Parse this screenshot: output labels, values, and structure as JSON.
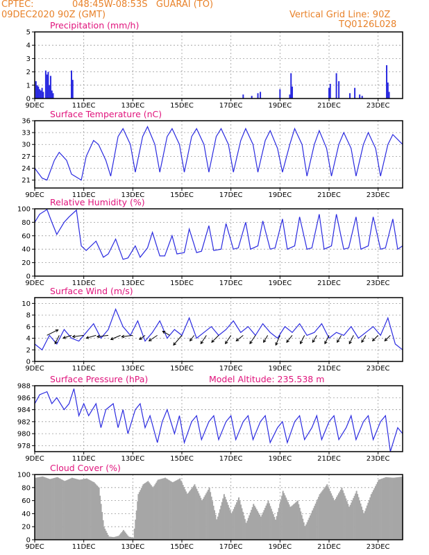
{
  "header": {
    "org": "CPTEC:",
    "location": "048:45W-08:53S   GUARAI (TO)",
    "run": "09DEC2020 90Z (GMT)",
    "grid_line": "Vertical Grid Line: 90Z",
    "code": "TQ0126L028"
  },
  "colors": {
    "header": "#e8822a",
    "title": "#e0147c",
    "line": "#2a2ae0",
    "cloud": "#a6a6a6",
    "wind": "#000000"
  },
  "x_tick_labels": [
    "9DEC",
    "11DEC",
    "13DEC",
    "15DEC",
    "17DEC",
    "19DEC",
    "21DEC",
    "23DEC"
  ],
  "x_tick_days": [
    0,
    2,
    4,
    6,
    8,
    10,
    12,
    14
  ],
  "x_range_days": [
    0,
    15
  ],
  "chart_data": [
    {
      "type": "bar",
      "title": "Precipitation (mm/h)",
      "ylim": [
        0,
        5
      ],
      "yticks": [
        0,
        1,
        2,
        3,
        4,
        5
      ],
      "grid": true,
      "x": [
        0.05,
        0.1,
        0.15,
        0.2,
        0.25,
        0.3,
        0.35,
        0.45,
        0.5,
        0.55,
        0.6,
        0.65,
        0.7,
        0.75,
        1.5,
        1.55,
        8.5,
        8.85,
        9.1,
        9.2,
        10.0,
        10.4,
        10.45,
        10.5,
        12.0,
        12.05,
        12.3,
        12.4,
        12.85,
        13.05,
        13.25,
        13.35,
        14.35,
        14.4,
        14.45
      ],
      "values": [
        1.3,
        1.0,
        0.9,
        0.7,
        0.6,
        0.8,
        0.5,
        2.1,
        1.8,
        2.0,
        1.0,
        1.7,
        0.6,
        0.4,
        2.1,
        1.4,
        0.3,
        0.2,
        0.4,
        0.5,
        0.7,
        0.3,
        1.9,
        0.9,
        0.8,
        1.1,
        1.9,
        1.3,
        0.4,
        0.8,
        0.3,
        0.2,
        2.5,
        1.2,
        0.5
      ]
    },
    {
      "type": "line",
      "title": "Surface Temperature (nC)",
      "ylim": [
        19,
        36
      ],
      "yticks": [
        21,
        24,
        27,
        30,
        33,
        36
      ],
      "grid": true,
      "series": [
        {
          "x": [
            0,
            0.3,
            0.5,
            0.8,
            1.0,
            1.3,
            1.5,
            1.9,
            2.1,
            2.4,
            2.6,
            2.9,
            3.1,
            3.4,
            3.6,
            3.9,
            4.1,
            4.4,
            4.6,
            4.9,
            5.1,
            5.4,
            5.6,
            5.9,
            6.1,
            6.4,
            6.6,
            6.9,
            7.1,
            7.4,
            7.6,
            7.9,
            8.1,
            8.4,
            8.6,
            8.9,
            9.1,
            9.4,
            9.6,
            9.9,
            10.1,
            10.4,
            10.6,
            10.9,
            11.1,
            11.4,
            11.6,
            11.9,
            12.1,
            12.4,
            12.6,
            12.9,
            13.1,
            13.4,
            13.6,
            13.9,
            14.1,
            14.4,
            14.6,
            15.0
          ],
          "values": [
            24,
            21.5,
            21,
            26,
            28,
            26,
            22.5,
            21,
            27,
            31,
            30,
            26,
            22,
            32,
            34,
            30,
            23,
            32,
            34.5,
            30,
            23,
            32,
            34,
            30,
            23,
            32,
            34,
            30,
            23,
            32,
            34,
            30,
            23,
            31,
            34,
            30,
            23,
            31,
            33.5,
            29,
            23,
            30,
            34,
            30,
            22,
            30,
            33.5,
            29,
            22,
            30,
            33,
            29,
            22,
            30,
            33,
            29,
            22,
            30,
            32.5,
            30
          ]
        }
      ]
    },
    {
      "type": "line",
      "title": "Relative Humidity (%)",
      "ylim": [
        0,
        100
      ],
      "yticks": [
        0,
        20,
        40,
        60,
        80,
        100
      ],
      "grid": true,
      "series": [
        {
          "x": [
            0,
            0.2,
            0.5,
            0.7,
            0.9,
            1.2,
            1.4,
            1.7,
            1.9,
            2.1,
            2.5,
            2.8,
            3.0,
            3.3,
            3.6,
            3.8,
            4.1,
            4.3,
            4.6,
            4.8,
            5.1,
            5.3,
            5.6,
            5.8,
            6.1,
            6.3,
            6.6,
            6.8,
            7.1,
            7.3,
            7.6,
            7.8,
            8.1,
            8.3,
            8.6,
            8.8,
            9.1,
            9.3,
            9.6,
            9.8,
            10.1,
            10.3,
            10.6,
            10.8,
            11.1,
            11.3,
            11.6,
            11.8,
            12.1,
            12.3,
            12.6,
            12.8,
            13.1,
            13.3,
            13.6,
            13.8,
            14.1,
            14.3,
            14.6,
            14.8,
            15.0
          ],
          "values": [
            80,
            92,
            99,
            80,
            62,
            80,
            88,
            98,
            45,
            38,
            52,
            28,
            33,
            55,
            25,
            27,
            45,
            28,
            42,
            65,
            30,
            30,
            60,
            33,
            35,
            70,
            35,
            37,
            75,
            38,
            40,
            78,
            40,
            42,
            80,
            40,
            45,
            82,
            40,
            42,
            85,
            40,
            45,
            88,
            40,
            42,
            92,
            40,
            45,
            92,
            40,
            42,
            88,
            40,
            45,
            88,
            40,
            42,
            85,
            40,
            45
          ]
        }
      ]
    },
    {
      "type": "line",
      "title": "Surface Wind (m/s)",
      "ylim": [
        0,
        11
      ],
      "yticks": [
        0,
        2,
        4,
        6,
        8,
        10
      ],
      "grid": true,
      "series": [
        {
          "x": [
            0,
            0.3,
            0.6,
            0.9,
            1.2,
            1.5,
            1.8,
            2.1,
            2.4,
            2.7,
            3.0,
            3.3,
            3.6,
            3.9,
            4.2,
            4.5,
            4.8,
            5.1,
            5.4,
            5.7,
            6.0,
            6.3,
            6.6,
            6.9,
            7.2,
            7.5,
            7.8,
            8.1,
            8.4,
            8.7,
            9.0,
            9.3,
            9.6,
            9.9,
            10.2,
            10.5,
            10.8,
            11.1,
            11.4,
            11.7,
            12.0,
            12.3,
            12.6,
            12.9,
            13.2,
            13.5,
            13.8,
            14.1,
            14.4,
            14.7,
            15.0
          ],
          "values": [
            3,
            2,
            4.5,
            3,
            5.5,
            4,
            3.5,
            5,
            6.5,
            4,
            5.5,
            9,
            6,
            4.5,
            7,
            3.5,
            5,
            7,
            4,
            5.5,
            4.5,
            7.5,
            4,
            5,
            6,
            4.5,
            5.5,
            7,
            5,
            6,
            4.5,
            6.5,
            5,
            4,
            6,
            5,
            6.5,
            4.5,
            5,
            6.5,
            4,
            5,
            4.5,
            6,
            4,
            5,
            6,
            4.5,
            7.5,
            3,
            2
          ]
        }
      ],
      "wind_arrows": {
        "x": [
          0.5,
          1.0,
          1.5,
          2.0,
          2.5,
          3.0,
          3.5,
          4.0,
          4.5,
          5.0,
          5.5,
          6.0,
          6.5,
          7.0,
          7.5,
          8.0,
          8.5,
          9.0,
          9.5,
          10.0,
          10.5,
          11.0,
          11.5,
          12.0,
          12.5,
          13.0,
          13.5,
          14.0,
          14.5
        ],
        "u": [
          4,
          -1.5,
          -3,
          -4,
          -3.5,
          -4,
          -3.5,
          -4,
          -2,
          -3,
          -2.5,
          -3,
          -1.5,
          -2,
          -2.5,
          -2,
          -2.5,
          -2,
          -1.5,
          -1.5,
          -2,
          -1.5,
          -1.5,
          -1.5,
          -1.5,
          -1.5,
          -1.5,
          -2,
          -2
        ],
        "v": [
          2,
          -3,
          -1,
          -0.5,
          -1,
          -0.5,
          -1.5,
          -0.5,
          -1.5,
          -2,
          1.5,
          -3.5,
          -2,
          -3,
          -2.5,
          -3,
          -2,
          -3,
          -2.5,
          -3.5,
          -2.5,
          -3,
          -2.5,
          -3,
          -2.5,
          -3,
          -2.5,
          -2,
          -2
        ]
      }
    },
    {
      "type": "line",
      "title": "Surface Pressure (hPa)",
      "annotation": "Model Altitude: 235.538 m",
      "ylim": [
        977,
        988
      ],
      "yticks": [
        978,
        980,
        982,
        984,
        986,
        988
      ],
      "grid": true,
      "series": [
        {
          "x": [
            0,
            0.2,
            0.5,
            0.7,
            0.9,
            1.2,
            1.4,
            1.6,
            1.8,
            2.0,
            2.2,
            2.5,
            2.7,
            2.9,
            3.2,
            3.4,
            3.6,
            3.8,
            4.1,
            4.3,
            4.5,
            4.7,
            5.0,
            5.2,
            5.4,
            5.7,
            5.9,
            6.1,
            6.4,
            6.6,
            6.8,
            7.1,
            7.3,
            7.5,
            7.8,
            8.0,
            8.2,
            8.5,
            8.7,
            8.9,
            9.2,
            9.4,
            9.6,
            9.9,
            10.1,
            10.3,
            10.6,
            10.8,
            11.0,
            11.3,
            11.5,
            11.7,
            12.0,
            12.2,
            12.4,
            12.7,
            12.9,
            13.1,
            13.4,
            13.6,
            13.8,
            14.1,
            14.3,
            14.5,
            14.8,
            15.0
          ],
          "values": [
            985,
            986.5,
            987,
            985,
            986,
            984,
            985,
            987.5,
            983,
            985,
            983,
            985,
            981,
            984,
            985,
            981,
            984,
            980,
            984,
            985,
            981,
            983,
            978.5,
            982,
            984,
            980,
            983,
            978.5,
            982,
            983,
            979,
            982,
            983,
            979,
            982,
            983,
            979,
            982,
            983,
            979,
            982,
            983,
            978.5,
            981,
            982,
            978.5,
            982,
            983,
            979,
            981,
            983,
            979,
            982,
            983,
            979,
            981,
            983,
            979,
            982,
            983,
            979,
            982,
            983,
            977,
            981,
            980
          ]
        }
      ]
    },
    {
      "type": "area",
      "title": "Cloud Cover (%)",
      "ylim": [
        0,
        100
      ],
      "yticks": [
        0,
        20,
        40,
        60,
        80,
        100
      ],
      "grid": true,
      "series": [
        {
          "x": [
            0,
            0.3,
            0.6,
            0.9,
            1.2,
            1.5,
            1.8,
            2.1,
            2.4,
            2.6,
            2.8,
            3.0,
            3.2,
            3.4,
            3.6,
            3.8,
            4.0,
            4.2,
            4.4,
            4.6,
            4.8,
            5.0,
            5.3,
            5.6,
            5.9,
            6.2,
            6.5,
            6.8,
            7.1,
            7.4,
            7.7,
            8.0,
            8.3,
            8.6,
            8.9,
            9.2,
            9.5,
            9.8,
            10.1,
            10.4,
            10.7,
            11.0,
            11.3,
            11.6,
            11.9,
            12.2,
            12.5,
            12.8,
            13.1,
            13.4,
            13.7,
            14.0,
            14.3,
            14.6,
            15.0
          ],
          "values": [
            95,
            97,
            93,
            96,
            90,
            95,
            92,
            94,
            88,
            80,
            20,
            5,
            4,
            6,
            15,
            5,
            3,
            70,
            85,
            90,
            80,
            92,
            95,
            88,
            94,
            70,
            85,
            60,
            80,
            30,
            70,
            40,
            65,
            25,
            55,
            35,
            60,
            30,
            75,
            50,
            60,
            20,
            45,
            70,
            85,
            60,
            80,
            50,
            75,
            40,
            70,
            92,
            96,
            95,
            97
          ]
        }
      ]
    }
  ]
}
